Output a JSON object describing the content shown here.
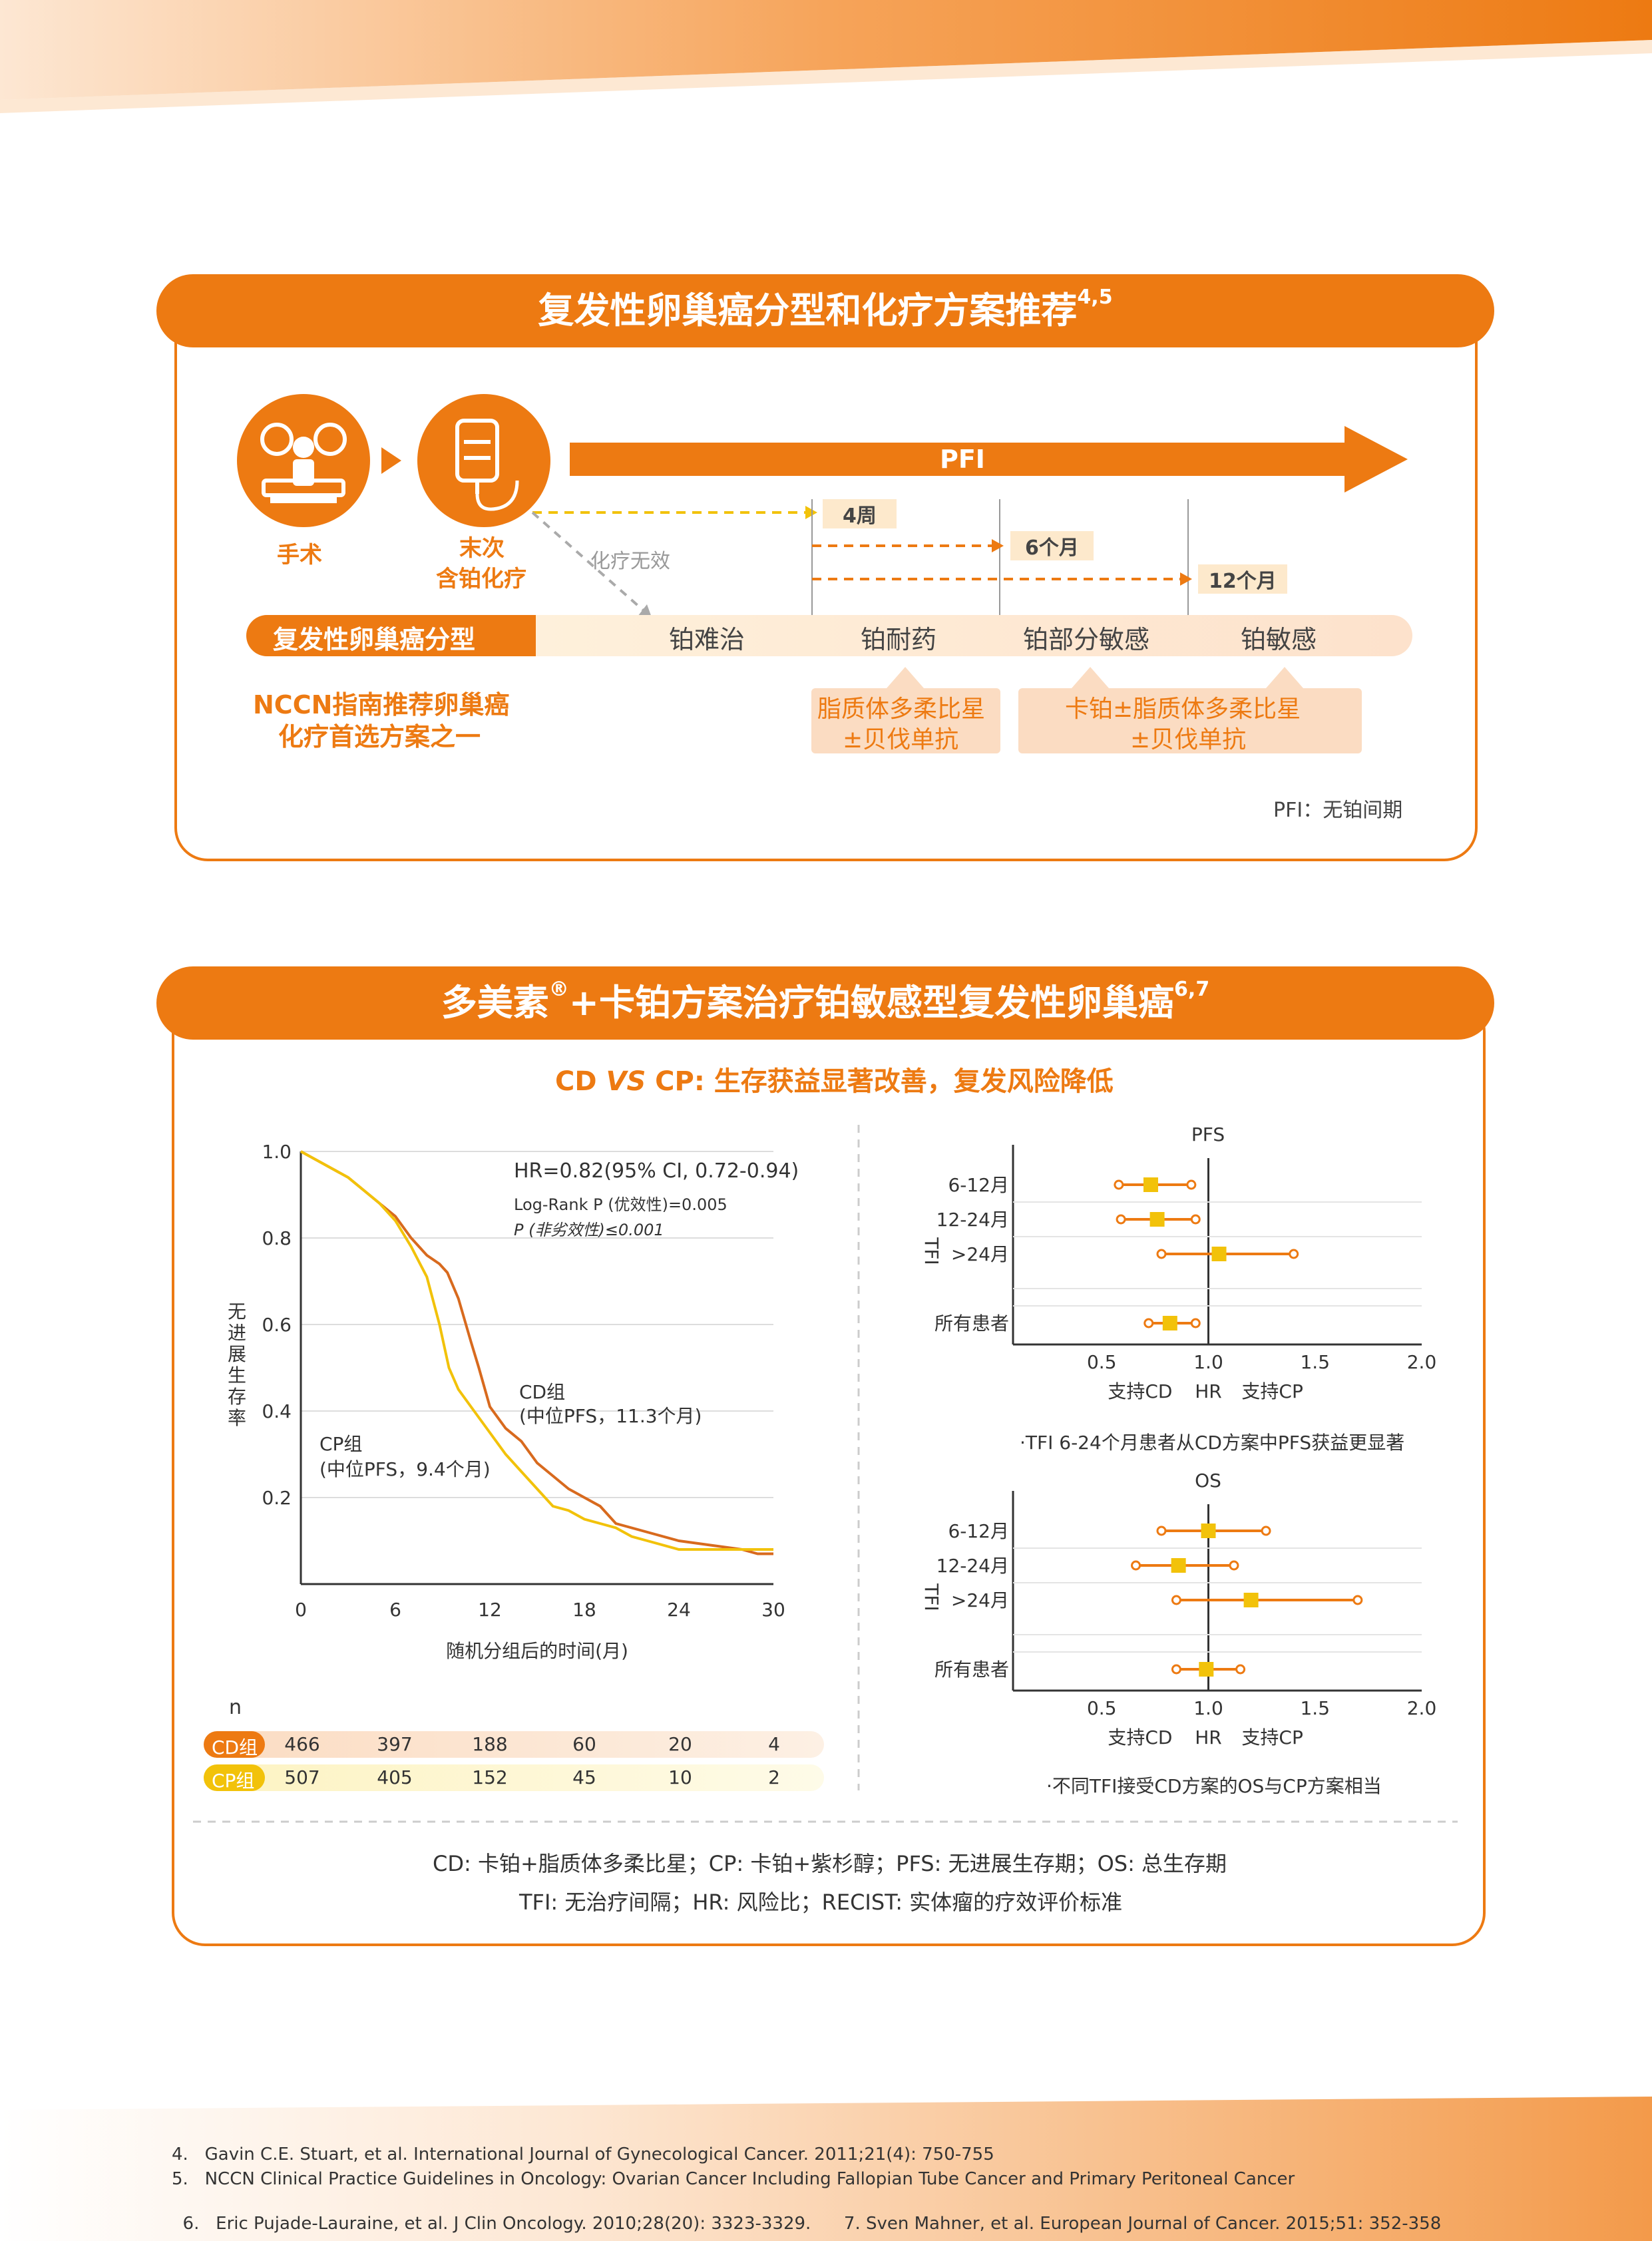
{
  "section1": {
    "title": "复发性卵巢癌分型和化疗方案推荐",
    "title_sup": "4,5",
    "surgery_label": "手术",
    "chemo_label_1": "末次",
    "chemo_label_2": "含铂化疗",
    "pfi_arrow": "PFI",
    "chemo_ineffective": "化疗无效",
    "time_4w": "4周",
    "time_6m": "6个月",
    "time_12m": "12个月",
    "type_header": "复发性卵巢癌分型",
    "types": [
      "铂难治",
      "铂耐药",
      "铂部分敏感",
      "铂敏感"
    ],
    "nccn_line1": "NCCN指南推荐卵巢癌",
    "nccn_line2": "化疗首选方案之一",
    "rec1_line1": "脂质体多柔比星",
    "rec1_line2": "±贝伐单抗",
    "rec2_line1": "卡铂±脂质体多柔比星",
    "rec2_line2": "±贝伐单抗",
    "footnote": "PFI：无铂间期"
  },
  "section2": {
    "title": "多美素",
    "title_reg": "®",
    "title_rest": "+卡铂方案治疗铂敏感型复发性卵巢癌",
    "title_sup": "6,7",
    "subtitle_a": "CD ",
    "subtitle_vs": "VS",
    "subtitle_b": " CP: 生存获益显著改善，复发风险降低",
    "hr_text": "HR=0.82(95% CI, 0.72-0.94)",
    "logrank_text": "Log-Rank  P (优效性)=0.005",
    "p_text": "P (非劣效性)≤0.001",
    "cd_group": "CD组",
    "cd_median": "(中位PFS，11.3个月)",
    "cp_group": "CP组",
    "cp_median": "(中位PFS，9.4个月)",
    "n_label": "n",
    "risk_cd_label": "CD组",
    "risk_cp_label": "CP组",
    "risk_cd": [
      "466",
      "397",
      "188",
      "60",
      "20",
      "4"
    ],
    "risk_cp": [
      "507",
      "405",
      "152",
      "45",
      "10",
      "2"
    ],
    "pfs_note": "·TFI 6-24个月患者从CD方案中PFS获益更显著",
    "os_note": "·不同TFI接受CD方案的OS与CP方案相当",
    "abbrev_line1": "CD: 卡铂+脂质体多柔比星；CP: 卡铂+紫杉醇；PFS: 无进展生存期；OS: 总生存期",
    "abbrev_line2": "TFI: 无治疗间隔；HR: 风险比；RECIST: 实体瘤的疗效评价标准"
  },
  "chart_data": [
    {
      "type": "line",
      "title": "",
      "xlabel": "随机分组后的时间(月)",
      "ylabel": "无进展生存率",
      "xlim": [
        0,
        30
      ],
      "ylim": [
        0,
        1.0
      ],
      "x_ticks": [
        "0",
        "6",
        "12",
        "18",
        "24",
        "30"
      ],
      "y_ticks": [
        "0.2",
        "0.4",
        "0.6",
        "0.8",
        "1.0"
      ],
      "grid": true,
      "series": [
        {
          "name": "CD组",
          "color": "#d86a1e",
          "points": [
            [
              0,
              1.0
            ],
            [
              1,
              0.98
            ],
            [
              2,
              0.96
            ],
            [
              3,
              0.94
            ],
            [
              4,
              0.91
            ],
            [
              5,
              0.88
            ],
            [
              6,
              0.85
            ],
            [
              7,
              0.8
            ],
            [
              8,
              0.76
            ],
            [
              8.8,
              0.74
            ],
            [
              9.3,
              0.72
            ],
            [
              10,
              0.66
            ],
            [
              10.8,
              0.56
            ],
            [
              11.3,
              0.5
            ],
            [
              12,
              0.41
            ],
            [
              13,
              0.36
            ],
            [
              14,
              0.33
            ],
            [
              15,
              0.28
            ],
            [
              16,
              0.25
            ],
            [
              17,
              0.22
            ],
            [
              18,
              0.2
            ],
            [
              19,
              0.18
            ],
            [
              20,
              0.14
            ],
            [
              21,
              0.13
            ],
            [
              22,
              0.12
            ],
            [
              24,
              0.1
            ],
            [
              26,
              0.09
            ],
            [
              28,
              0.08
            ],
            [
              29,
              0.07
            ],
            [
              30,
              0.07
            ]
          ]
        },
        {
          "name": "CP组",
          "color": "#f2c20a",
          "points": [
            [
              0,
              1.0
            ],
            [
              1,
              0.98
            ],
            [
              2,
              0.96
            ],
            [
              3,
              0.94
            ],
            [
              4,
              0.91
            ],
            [
              5,
              0.88
            ],
            [
              6,
              0.84
            ],
            [
              7,
              0.78
            ],
            [
              8,
              0.71
            ],
            [
              8.8,
              0.6
            ],
            [
              9.4,
              0.5
            ],
            [
              10,
              0.45
            ],
            [
              11,
              0.4
            ],
            [
              12,
              0.35
            ],
            [
              13,
              0.3
            ],
            [
              14,
              0.26
            ],
            [
              15,
              0.22
            ],
            [
              16,
              0.18
            ],
            [
              17,
              0.17
            ],
            [
              18,
              0.15
            ],
            [
              19,
              0.14
            ],
            [
              20,
              0.13
            ],
            [
              21,
              0.11
            ],
            [
              22,
              0.1
            ],
            [
              24,
              0.08
            ],
            [
              26,
              0.08
            ],
            [
              28,
              0.08
            ],
            [
              30,
              0.08
            ]
          ]
        }
      ]
    },
    {
      "type": "scatter",
      "title": "PFS",
      "ylabel": "TFI",
      "xlabel": "HR",
      "xlim": [
        0,
        2.0
      ],
      "x_ticks": [
        "0.5",
        "1.0",
        "1.5",
        "2.0"
      ],
      "x_left_label": "支持CD",
      "x_right_label": "支持CP",
      "categories": [
        "6-12月",
        "12-24月",
        ">24月",
        "所有患者"
      ],
      "hr": [
        0.73,
        0.76,
        1.05,
        0.82
      ],
      "ci": [
        [
          0.58,
          0.92
        ],
        [
          0.59,
          0.94
        ],
        [
          0.78,
          1.4
        ],
        [
          0.72,
          0.94
        ]
      ]
    },
    {
      "type": "scatter",
      "title": "OS",
      "ylabel": "TFI",
      "xlabel": "HR",
      "xlim": [
        0,
        2.0
      ],
      "x_ticks": [
        "0.5",
        "1.0",
        "1.5",
        "2.0"
      ],
      "x_left_label": "支持CD",
      "x_right_label": "支持CP",
      "categories": [
        "6-12月",
        "12-24月",
        ">24月",
        "所有患者"
      ],
      "hr": [
        1.0,
        0.86,
        1.2,
        0.99
      ],
      "ci": [
        [
          0.78,
          1.27
        ],
        [
          0.66,
          1.12
        ],
        [
          0.85,
          1.7
        ],
        [
          0.85,
          1.15
        ]
      ]
    }
  ],
  "references": [
    {
      "num": "4.",
      "text": "Gavin C.E. Stuart, et al. International Journal of Gynecological Cancer. 2011;21(4): 750-755"
    },
    {
      "num": "5.",
      "text": "NCCN Clinical Practice Guidelines in Oncology: Ovarian Cancer Including Fallopian Tube Cancer and Primary Peritoneal Cancer"
    },
    {
      "num": "6.",
      "text": "Eric Pujade-Lauraine, et al. J Clin Oncology. 2010;28(20): 3323-3329.      7. Sven Mahner, et al. European Journal of Cancer. 2015;51: 352-358"
    }
  ]
}
